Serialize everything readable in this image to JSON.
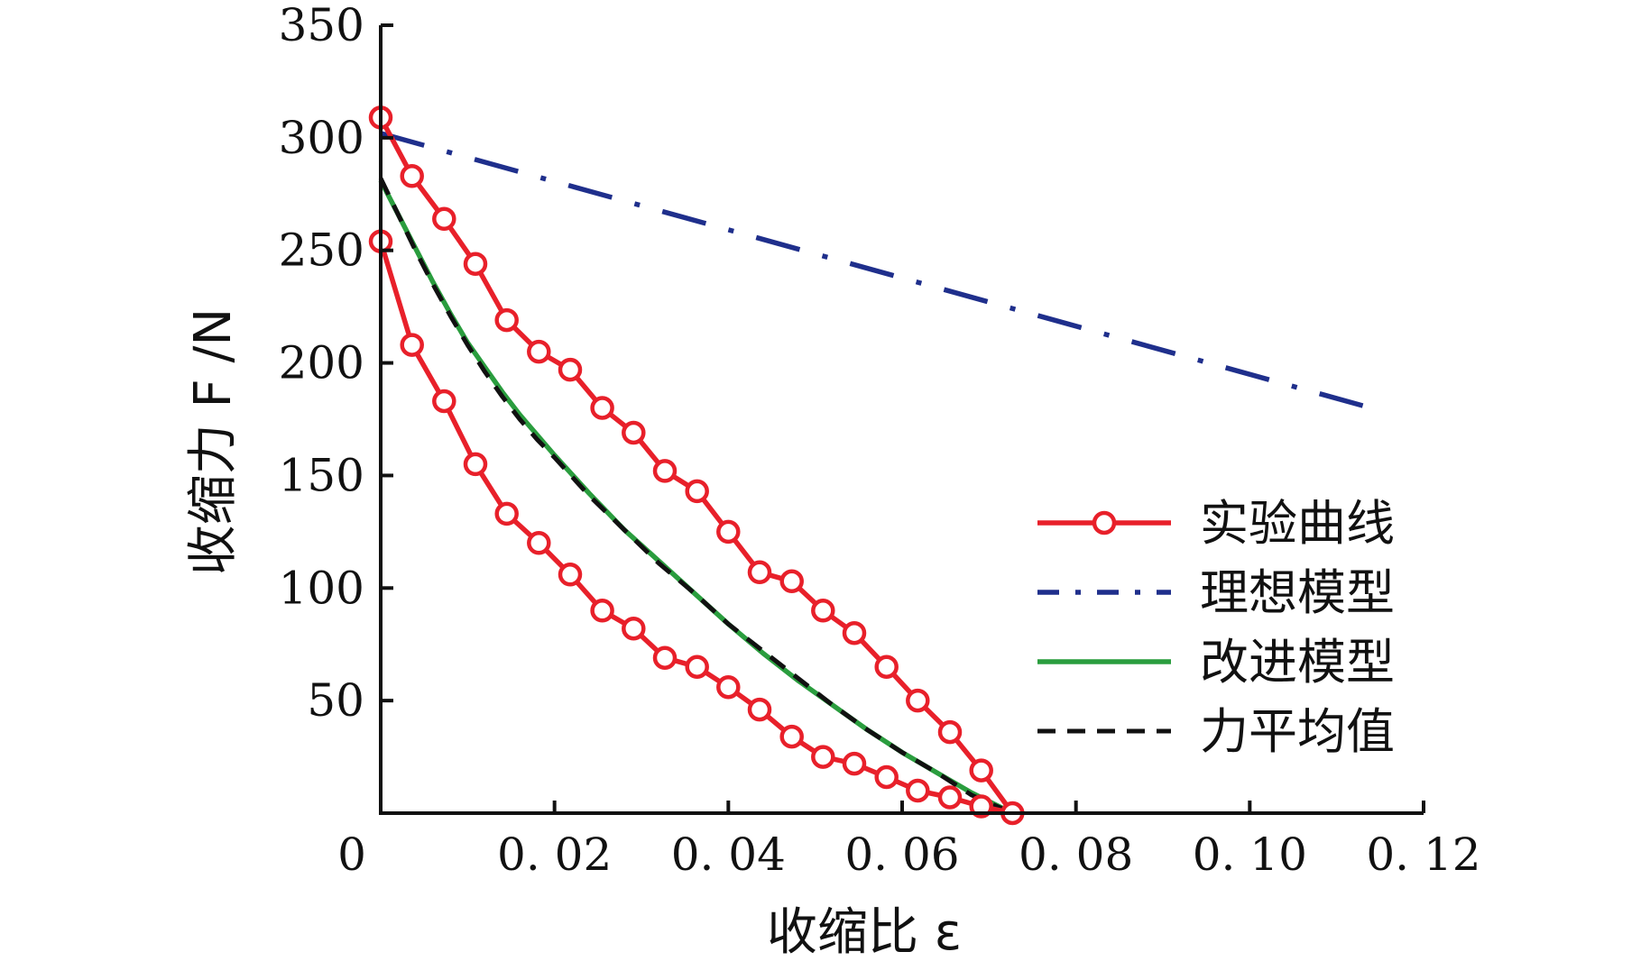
{
  "chart_data": {
    "type": "line",
    "xlabel": "收缩比 ε",
    "ylabel": "收缩力 F /N",
    "xlim": [
      0,
      0.12
    ],
    "ylim": [
      0,
      350
    ],
    "x_ticks": [
      {
        "value": 0.0,
        "label": "0"
      },
      {
        "value": 0.02,
        "label": "0. 02"
      },
      {
        "value": 0.04,
        "label": "0. 04"
      },
      {
        "value": 0.06,
        "label": "0. 06"
      },
      {
        "value": 0.08,
        "label": "0. 08"
      },
      {
        "value": 0.1,
        "label": "0. 10"
      },
      {
        "value": 0.12,
        "label": "0. 12"
      }
    ],
    "y_ticks": [
      {
        "value": 50,
        "label": "50"
      },
      {
        "value": 100,
        "label": "100"
      },
      {
        "value": 150,
        "label": "150"
      },
      {
        "value": 200,
        "label": "200"
      },
      {
        "value": 250,
        "label": "250"
      },
      {
        "value": 300,
        "label": "300"
      },
      {
        "value": 350,
        "label": "350"
      }
    ],
    "legend_position": "lower-right",
    "series": [
      {
        "name": "实验曲线",
        "color": "#e8202a",
        "style": "solid-circle-markers",
        "x": [
          0.0,
          0.0036,
          0.0073,
          0.0109,
          0.0145,
          0.0182,
          0.0218,
          0.0255,
          0.0291,
          0.0327,
          0.0364,
          0.04,
          0.0436,
          0.0473,
          0.0509,
          0.0545,
          0.0582,
          0.0618,
          0.0655,
          0.0691,
          0.0727,
          0.0691,
          0.0655,
          0.0618,
          0.0582,
          0.0545,
          0.0509,
          0.0473,
          0.0436,
          0.04,
          0.0364,
          0.0327,
          0.0291,
          0.0255,
          0.0218,
          0.0182,
          0.0145,
          0.0109,
          0.0073,
          0.0036,
          0.0
        ],
        "y": [
          309,
          283,
          264,
          244,
          219,
          205,
          197,
          180,
          169,
          152,
          143,
          125,
          107,
          103,
          90,
          80,
          65,
          50,
          36,
          19,
          0,
          3,
          7,
          10,
          16,
          22,
          25,
          34,
          46,
          56,
          65,
          69,
          82,
          90,
          106,
          120,
          133,
          155,
          183,
          208,
          254
        ]
      },
      {
        "name": "理想模型",
        "color": "#1f2f8c",
        "style": "dash-dot",
        "x": [
          0.0,
          0.113
        ],
        "y": [
          302,
          181
        ]
      },
      {
        "name": "改进模型",
        "color": "#2a9d3e",
        "style": "solid",
        "x": [
          0.0,
          0.002,
          0.004,
          0.006,
          0.008,
          0.01,
          0.012,
          0.014,
          0.016,
          0.018,
          0.02,
          0.024,
          0.028,
          0.032,
          0.036,
          0.04,
          0.044,
          0.048,
          0.052,
          0.056,
          0.06,
          0.064,
          0.068,
          0.0727
        ],
        "y": [
          281,
          266,
          251,
          236,
          222,
          209,
          198,
          187,
          177,
          168,
          159,
          142,
          126,
          112,
          98,
          84,
          71,
          59,
          48,
          37,
          27,
          18,
          9,
          0
        ]
      },
      {
        "name": "力平均值",
        "color": "#111111",
        "style": "dashed",
        "x": [
          0.0,
          0.002,
          0.004,
          0.006,
          0.008,
          0.01,
          0.012,
          0.014,
          0.016,
          0.018,
          0.02,
          0.024,
          0.028,
          0.032,
          0.036,
          0.04,
          0.044,
          0.048,
          0.052,
          0.056,
          0.06,
          0.064,
          0.068,
          0.0727
        ],
        "y": [
          282,
          266,
          250,
          235,
          221,
          208,
          196,
          185,
          175,
          166,
          158,
          141,
          126,
          111,
          98,
          84,
          72,
          60,
          48,
          37,
          27,
          18,
          8,
          0
        ]
      }
    ]
  }
}
